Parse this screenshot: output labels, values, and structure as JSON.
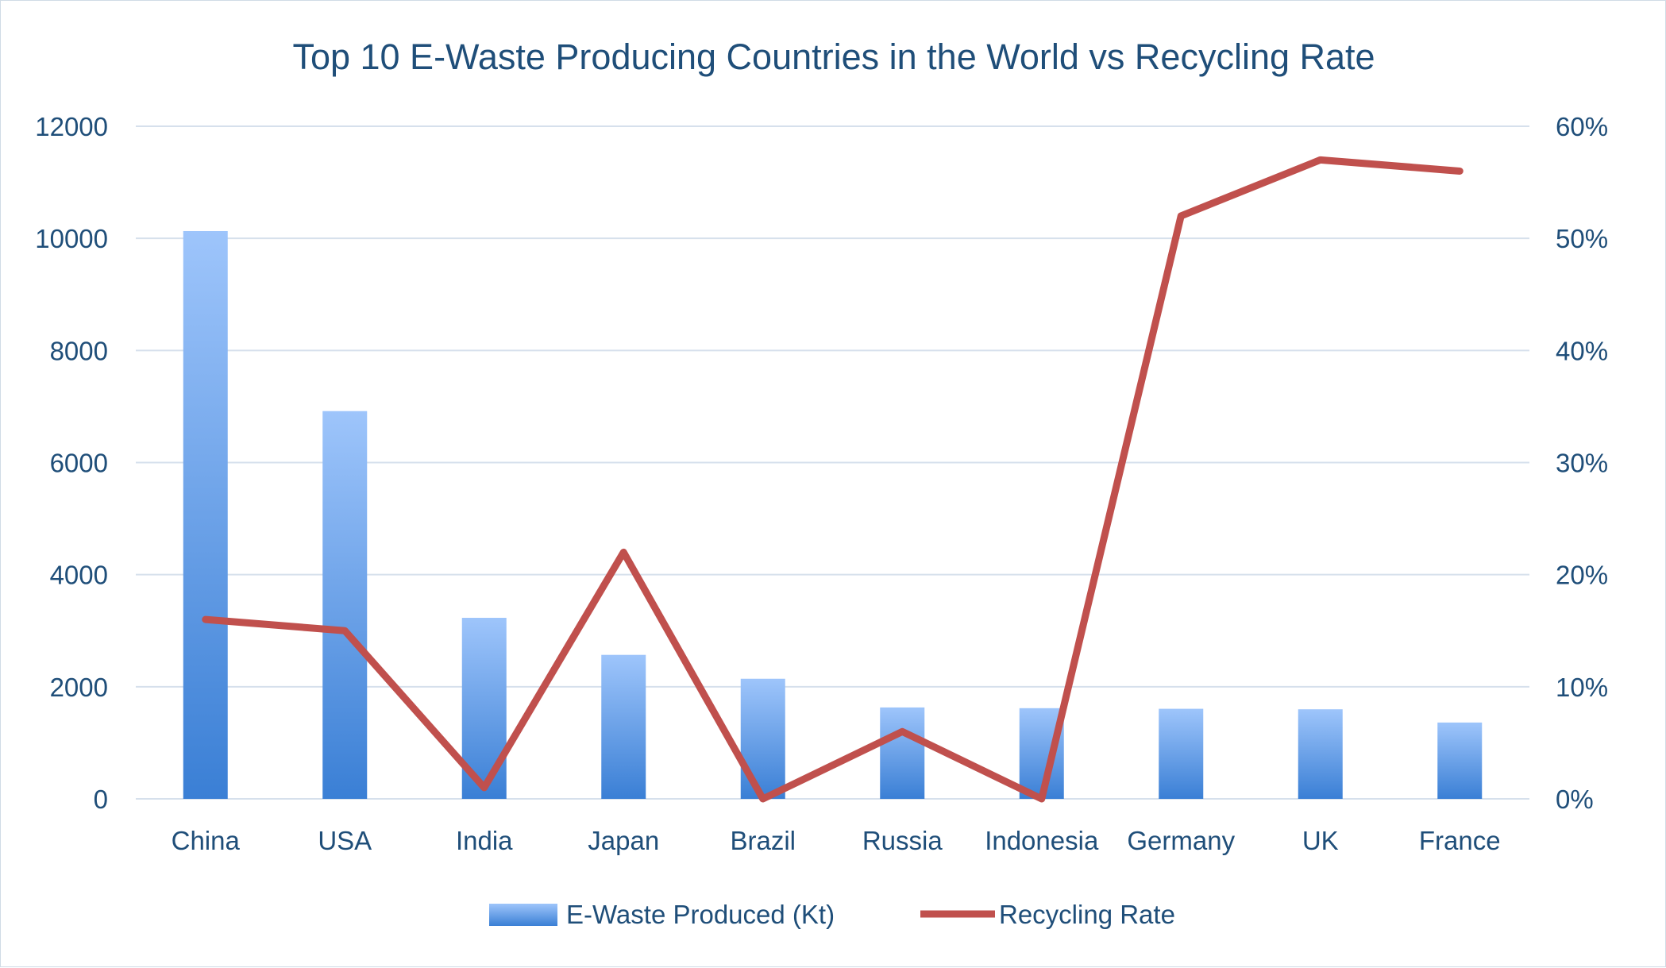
{
  "chart_data": {
    "type": "bar",
    "title": "Top 10 E-Waste Producing Countries in the World vs Recycling Rate",
    "categories": [
      "China",
      "USA",
      "India",
      "Japan",
      "Brazil",
      "Russia",
      "Indonesia",
      "Germany",
      "UK",
      "France"
    ],
    "series": [
      {
        "name": "E-Waste Produced (Kt)",
        "type": "bar",
        "axis": "left",
        "color": "#3a7fd5",
        "values": [
          10130,
          6918,
          3230,
          2569,
          2143,
          1631,
          1618,
          1607,
          1598,
          1362
        ]
      },
      {
        "name": "Recycling Rate",
        "type": "line",
        "axis": "right",
        "color": "#c0504d",
        "values": [
          0.16,
          0.15,
          0.01,
          0.22,
          0.0,
          0.06,
          0.0,
          0.52,
          0.57,
          0.56
        ]
      }
    ],
    "y_left": {
      "ylim": [
        0,
        12000
      ],
      "ticks": [
        "0",
        "2000",
        "4000",
        "6000",
        "8000",
        "10000",
        "12000"
      ]
    },
    "y_right": {
      "ylim": [
        0,
        0.6
      ],
      "ticks": [
        "0%",
        "10%",
        "20%",
        "30%",
        "40%",
        "50%",
        "60%"
      ]
    },
    "grid": true,
    "legend": "bottom"
  }
}
